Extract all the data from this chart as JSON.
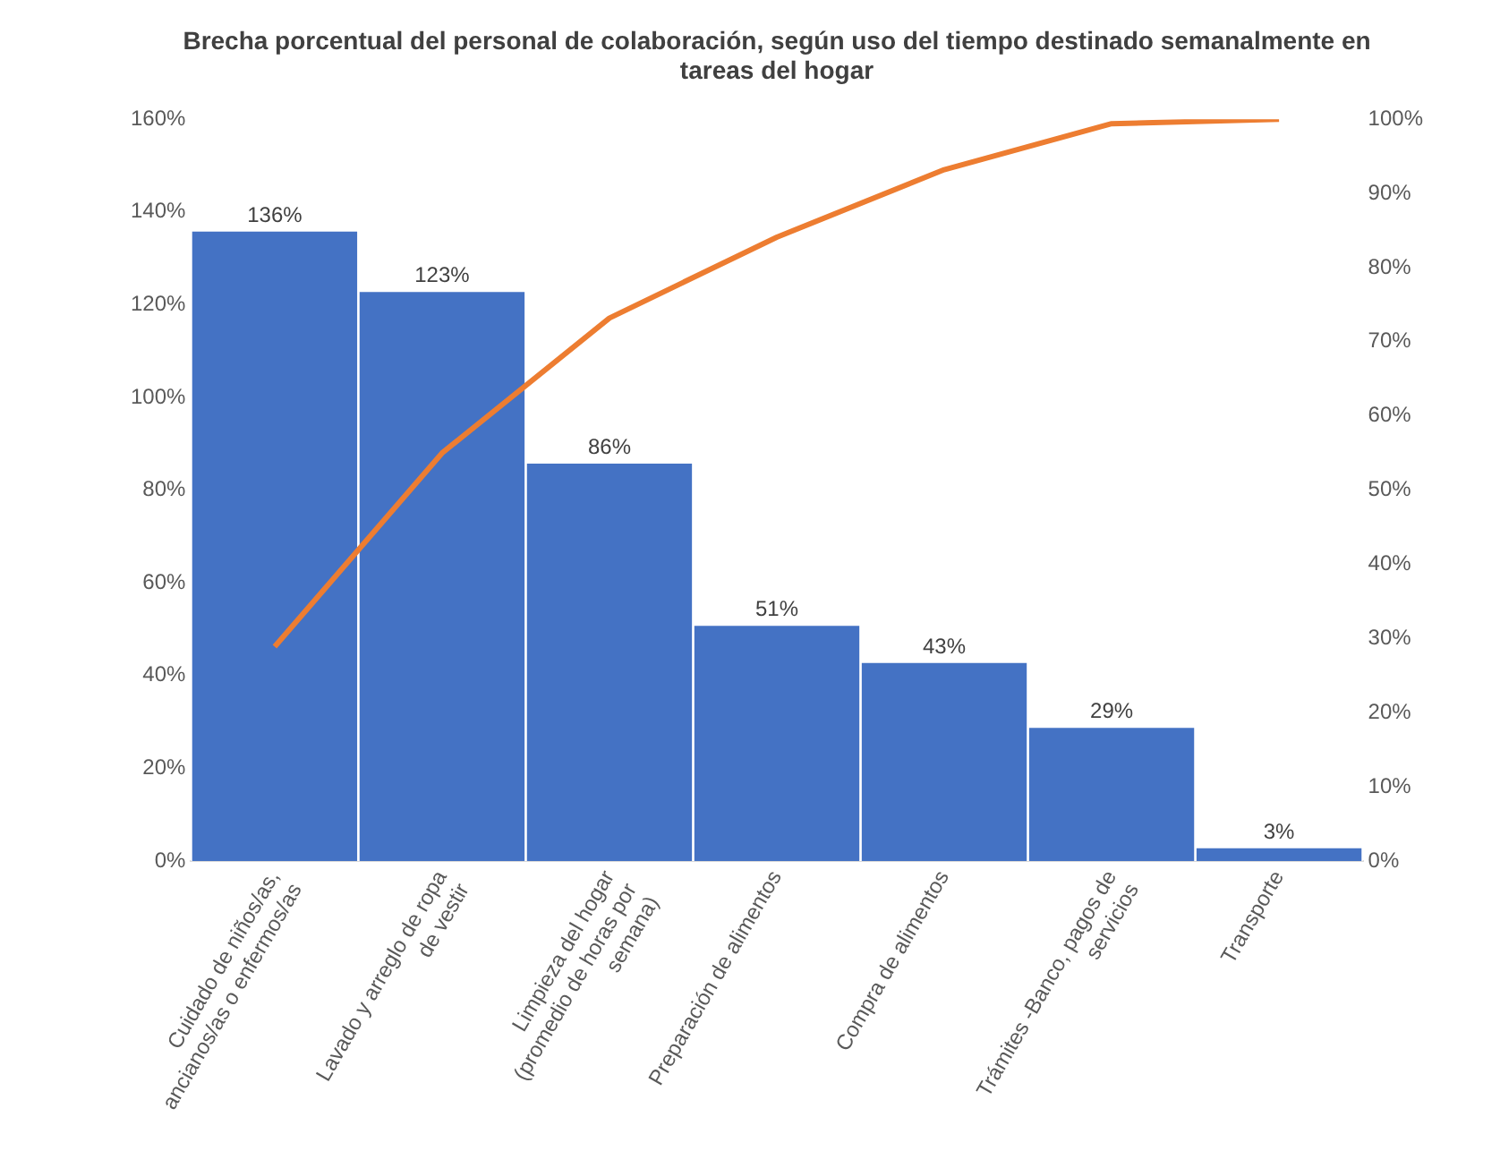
{
  "chart_data": {
    "type": "bar",
    "title": "Brecha porcentual del personal de colaboración, según uso del tiempo destinado semanalmente en tareas del hogar",
    "categories": [
      "Cuidado de niños/as, ancianos/as o enfermos/as",
      "Lavado y arreglo de ropa de vestir",
      "Limpieza del hogar (promedio de horas por semana)",
      "Preparación de alimentos",
      "Compra de alimentos",
      "Trámites -Banco, pagos de servicios",
      "Transporte"
    ],
    "series": [
      {
        "color": "#4472c4",
        "values": [
          136,
          123,
          86,
          51,
          43,
          29,
          3
        ],
        "value_labels": [
          "136%",
          "123%",
          "86%",
          "51%",
          "43%",
          "29%",
          "3%"
        ]
      },
      {
        "type": "line",
        "axis": "y2",
        "color": "#ed7d31",
        "values": [
          28.9,
          55.0,
          73.2,
          84.1,
          93.2,
          99.4,
          100
        ]
      }
    ],
    "ylim": [
      0,
      160
    ],
    "yticks": [
      {
        "value": 0,
        "label": "0%"
      },
      {
        "value": 20,
        "label": "20%"
      },
      {
        "value": 40,
        "label": "40%"
      },
      {
        "value": 60,
        "label": "60%"
      },
      {
        "value": 80,
        "label": "80%"
      },
      {
        "value": 100,
        "label": "100%"
      },
      {
        "value": 120,
        "label": "120%"
      },
      {
        "value": 140,
        "label": "140%"
      },
      {
        "value": 160,
        "label": "160%"
      }
    ],
    "y2lim": [
      0,
      100
    ],
    "y2ticks": [
      {
        "value": 0,
        "label": "0%"
      },
      {
        "value": 10,
        "label": "10%"
      },
      {
        "value": 20,
        "label": "20%"
      },
      {
        "value": 30,
        "label": "30%"
      },
      {
        "value": 40,
        "label": "40%"
      },
      {
        "value": 50,
        "label": "50%"
      },
      {
        "value": 60,
        "label": "60%"
      },
      {
        "value": 70,
        "label": "70%"
      },
      {
        "value": 80,
        "label": "80%"
      },
      {
        "value": 90,
        "label": "90%"
      },
      {
        "value": 100,
        "label": "100%"
      }
    ],
    "grid": false,
    "legend": false,
    "marker": "none"
  }
}
